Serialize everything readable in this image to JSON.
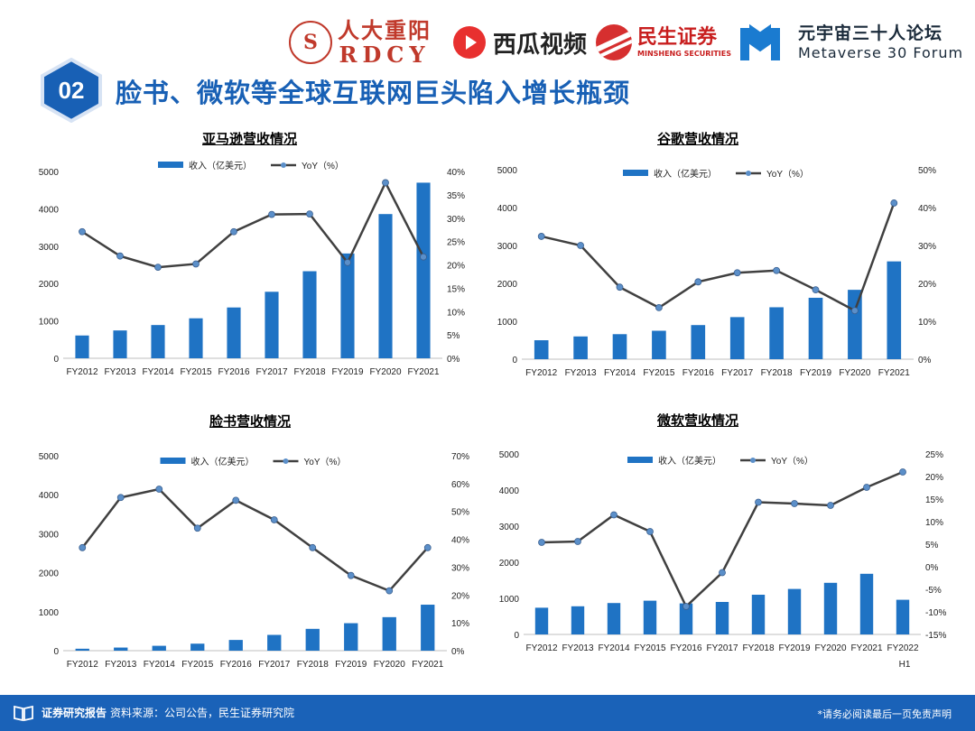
{
  "header": {
    "logos": {
      "rdcy_cn": "人大重阳",
      "rdcy_en": "RDCY",
      "xigua": "西瓜视频",
      "minsheng_cn": "民生证券",
      "minsheng_en": "MINSHENG SECURITIES",
      "forum_cn": "元宇宙三十人论坛",
      "forum_en": "Metaverse 30 Forum"
    },
    "section_number": "02",
    "title": "脸书、微软等全球互联网巨头陷入增长瓶颈"
  },
  "colors": {
    "bar": "#1f73c4",
    "line": "#404040",
    "marker": "#5b8fc9",
    "brand": "#1860b5"
  },
  "chart_data": [
    {
      "type": "bar",
      "title": "亚马逊营收情况",
      "categories": [
        "FY2012",
        "FY2013",
        "FY2014",
        "FY2015",
        "FY2016",
        "FY2017",
        "FY2018",
        "FY2019",
        "FY2020",
        "FY2021"
      ],
      "series": [
        {
          "name": "收入（亿美元）",
          "type": "bar",
          "axis": "left",
          "values": [
            610,
            745,
            890,
            1070,
            1360,
            1780,
            2330,
            2805,
            3860,
            4700
          ]
        },
        {
          "name": "YoY（%）",
          "type": "line",
          "axis": "right",
          "values": [
            27.1,
            21.9,
            19.5,
            20.2,
            27.1,
            30.8,
            30.9,
            20.5,
            37.6,
            21.7
          ]
        }
      ],
      "y_left": {
        "min": 0,
        "max": 5000,
        "ticks": [
          "0",
          "1000",
          "2000",
          "3000",
          "4000",
          "5000"
        ]
      },
      "y_right": {
        "min": 0,
        "max": 40,
        "ticks": [
          "0%",
          "5%",
          "10%",
          "15%",
          "20%",
          "25%",
          "30%",
          "35%",
          "40%"
        ]
      },
      "legend": "top"
    },
    {
      "type": "bar",
      "title": "谷歌营收情况",
      "categories": [
        "FY2012",
        "FY2013",
        "FY2014",
        "FY2015",
        "FY2016",
        "FY2017",
        "FY2018",
        "FY2019",
        "FY2020",
        "FY2021"
      ],
      "series": [
        {
          "name": "收入（亿美元）",
          "type": "bar",
          "axis": "left",
          "values": [
            500,
            600,
            660,
            750,
            900,
            1110,
            1370,
            1620,
            1830,
            2580
          ]
        },
        {
          "name": "YoY（%）",
          "type": "line",
          "axis": "right",
          "values": [
            32.4,
            30.0,
            19.0,
            13.6,
            20.4,
            22.8,
            23.4,
            18.3,
            12.8,
            41.2
          ]
        }
      ],
      "y_left": {
        "min": 0,
        "max": 5000,
        "ticks": [
          "0",
          "1000",
          "2000",
          "3000",
          "4000",
          "5000"
        ]
      },
      "y_right": {
        "min": 0,
        "max": 50,
        "ticks": [
          "0%",
          "10%",
          "20%",
          "30%",
          "40%",
          "50%"
        ]
      },
      "legend": "top"
    },
    {
      "type": "bar",
      "title": "脸书营收情况",
      "categories": [
        "FY2012",
        "FY2013",
        "FY2014",
        "FY2015",
        "FY2016",
        "FY2017",
        "FY2018",
        "FY2019",
        "FY2020",
        "FY2021"
      ],
      "series": [
        {
          "name": "收入（亿美元）",
          "type": "bar",
          "axis": "left",
          "values": [
            50,
            80,
            125,
            180,
            275,
            405,
            560,
            705,
            860,
            1180
          ]
        },
        {
          "name": "YoY（%）",
          "type": "line",
          "axis": "right",
          "values": [
            37.0,
            55.0,
            58.0,
            44.0,
            54.0,
            47.0,
            37.0,
            27.0,
            21.5,
            37.0
          ]
        }
      ],
      "y_left": {
        "min": 0,
        "max": 5000,
        "ticks": [
          "0",
          "1000",
          "2000",
          "3000",
          "4000",
          "5000"
        ]
      },
      "y_right": {
        "min": 0,
        "max": 70,
        "ticks": [
          "0%",
          "10%",
          "20%",
          "30%",
          "40%",
          "50%",
          "60%",
          "70%"
        ]
      },
      "legend": "top"
    },
    {
      "type": "bar",
      "title": "微软营收情况",
      "categories": [
        "FY2012",
        "FY2013",
        "FY2014",
        "FY2015",
        "FY2016",
        "FY2017",
        "FY2018",
        "FY2019",
        "FY2020",
        "FY2021",
        "FY2022 H1"
      ],
      "series": [
        {
          "name": "收入（亿美元）",
          "type": "bar",
          "axis": "left",
          "values": [
            740,
            780,
            870,
            935,
            860,
            900,
            1100,
            1260,
            1430,
            1680,
            960
          ]
        },
        {
          "name": "YoY（%）",
          "type": "line",
          "axis": "right",
          "values": [
            5.4,
            5.6,
            11.5,
            7.8,
            -8.8,
            -1.3,
            14.3,
            14.0,
            13.6,
            17.6,
            21.0
          ]
        }
      ],
      "y_left": {
        "min": 0,
        "max": 5000,
        "ticks": [
          "0",
          "1000",
          "2000",
          "3000",
          "4000",
          "5000"
        ]
      },
      "y_right": {
        "min": -15,
        "max": 25,
        "ticks": [
          "-15%",
          "-10%",
          "-5%",
          "0%",
          "5%",
          "10%",
          "15%",
          "20%",
          "25%"
        ]
      },
      "legend": "top"
    }
  ],
  "footer": {
    "label": "证券研究报告",
    "source": "资料来源：公司公告，民生证券研究院",
    "disclaimer": "*请务必阅读最后一页免责声明"
  }
}
